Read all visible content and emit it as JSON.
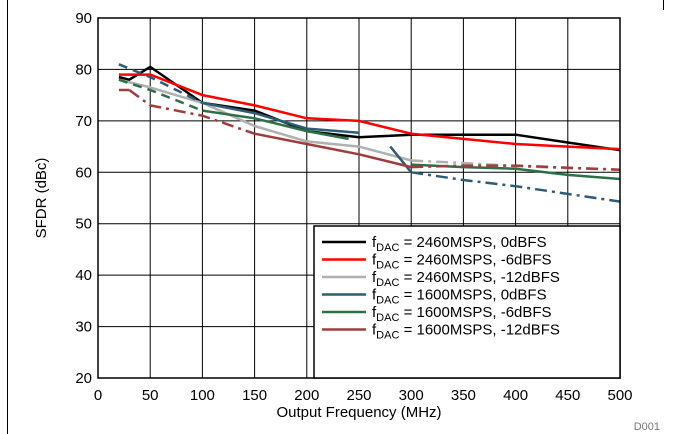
{
  "chart_data": {
    "type": "line",
    "xlabel": "Output Frequency (MHz)",
    "ylabel": "SFDR (dBc)",
    "xlim": [
      0,
      500
    ],
    "ylim": [
      20,
      90
    ],
    "xticks": [
      0,
      50,
      100,
      150,
      200,
      250,
      300,
      350,
      400,
      450,
      500
    ],
    "yticks": [
      20,
      30,
      40,
      50,
      60,
      70,
      80,
      90
    ],
    "grid": true,
    "legend_position": "bottom-right",
    "figure_id": "D001",
    "series": [
      {
        "name": "fDAC = 2460MSPS, 0dBFS",
        "label_main": "f",
        "label_sub": "DAC",
        "label_rest": " = 2460MSPS, 0dBFS",
        "color": "#000000",
        "segments": [
          {
            "dash": "solid",
            "points": [
              [
                20,
                78.5
              ],
              [
                30,
                78
              ],
              [
                50,
                80.5
              ],
              [
                100,
                73.5
              ],
              [
                150,
                72
              ],
              [
                200,
                68
              ],
              [
                250,
                66.8
              ],
              [
                300,
                67.3
              ],
              [
                350,
                67.3
              ],
              [
                400,
                67.3
              ],
              [
                450,
                65.8
              ],
              [
                500,
                64.3
              ]
            ]
          }
        ]
      },
      {
        "name": "fDAC = 2460MSPS, -6dBFS",
        "label_main": "f",
        "label_sub": "DAC",
        "label_rest": " = 2460MSPS, -6dBFS",
        "color": "#ff0000",
        "segments": [
          {
            "dash": "solid",
            "points": [
              [
                20,
                79
              ],
              [
                50,
                79
              ],
              [
                100,
                75
              ],
              [
                150,
                73
              ],
              [
                200,
                70.5
              ],
              [
                250,
                70
              ],
              [
                300,
                67.5
              ],
              [
                350,
                66.5
              ],
              [
                400,
                65.5
              ],
              [
                450,
                65
              ],
              [
                500,
                64.5
              ]
            ]
          }
        ]
      },
      {
        "name": "fDAC = 2460MSPS, -12dBFS",
        "label_main": "f",
        "label_sub": "DAC",
        "label_rest": " = 2460MSPS, -12dBFS",
        "color": "#b0b0b0",
        "segments": [
          {
            "dash": "solid",
            "points": [
              [
                20,
                78
              ],
              [
                50,
                76.5
              ],
              [
                100,
                73.5
              ],
              [
                150,
                69
              ],
              [
                200,
                66
              ],
              [
                250,
                65
              ],
              [
                300,
                62.3
              ]
            ]
          },
          {
            "dash": "dashdot",
            "points": [
              [
                300,
                62.3
              ],
              [
                350,
                61.8
              ],
              [
                400,
                61.2
              ],
              [
                450,
                60.8
              ],
              [
                500,
                60.5
              ]
            ]
          }
        ]
      },
      {
        "name": "fDAC = 1600MSPS, 0dBFS",
        "label_main": "f",
        "label_sub": "DAC",
        "label_rest": " = 1600MSPS, 0dBFS",
        "color": "#2e5c75",
        "segments": [
          {
            "dash": "dash",
            "points": [
              [
                20,
                81
              ],
              [
                50,
                78.5
              ],
              [
                100,
                73.5
              ]
            ]
          },
          {
            "dash": "solid",
            "points": [
              [
                100,
                73.5
              ],
              [
                150,
                71.5
              ],
              [
                200,
                68.5
              ],
              [
                250,
                67.7
              ]
            ]
          },
          {
            "dash": "solid",
            "points": [
              [
                280,
                65
              ],
              [
                300,
                60
              ]
            ]
          },
          {
            "dash": "dashdot",
            "points": [
              [
                300,
                60
              ],
              [
                350,
                58.5
              ],
              [
                400,
                57.3
              ],
              [
                450,
                55.8
              ],
              [
                500,
                54.3
              ]
            ]
          }
        ]
      },
      {
        "name": "fDAC = 1600MSPS, -6dBFS",
        "label_main": "f",
        "label_sub": "DAC",
        "label_rest": " = 1600MSPS, -6dBFS",
        "color": "#2e7046",
        "segments": [
          {
            "dash": "dash",
            "points": [
              [
                20,
                78
              ],
              [
                50,
                76
              ],
              [
                100,
                72
              ]
            ]
          },
          {
            "dash": "solid",
            "points": [
              [
                100,
                72
              ],
              [
                150,
                70.5
              ],
              [
                200,
                68
              ],
              [
                240,
                66.5
              ]
            ]
          },
          {
            "dash": "solid",
            "points": [
              [
                300,
                61.5
              ],
              [
                350,
                61
              ],
              [
                400,
                60.7
              ],
              [
                450,
                59.5
              ],
              [
                500,
                58.7
              ]
            ]
          }
        ]
      },
      {
        "name": "fDAC = 1600MSPS, -12dBFS",
        "label_main": "f",
        "label_sub": "DAC",
        "label_rest": " = 1600MSPS, -12dBFS",
        "color": "#a03c3c",
        "segments": [
          {
            "dash": "solid",
            "points": [
              [
                20,
                76
              ],
              [
                30,
                76
              ]
            ]
          },
          {
            "dash": "dashdot",
            "points": [
              [
                30,
                76
              ],
              [
                50,
                73
              ],
              [
                100,
                71
              ],
              [
                150,
                67.5
              ]
            ]
          },
          {
            "dash": "solid",
            "points": [
              [
                150,
                67.5
              ],
              [
                200,
                65.5
              ],
              [
                250,
                63.5
              ],
              [
                300,
                61
              ]
            ]
          },
          {
            "dash": "dashdot",
            "points": [
              [
                300,
                61
              ],
              [
                350,
                61.3
              ],
              [
                400,
                61.3
              ],
              [
                450,
                60.9
              ],
              [
                500,
                60.5
              ]
            ]
          }
        ]
      }
    ]
  }
}
